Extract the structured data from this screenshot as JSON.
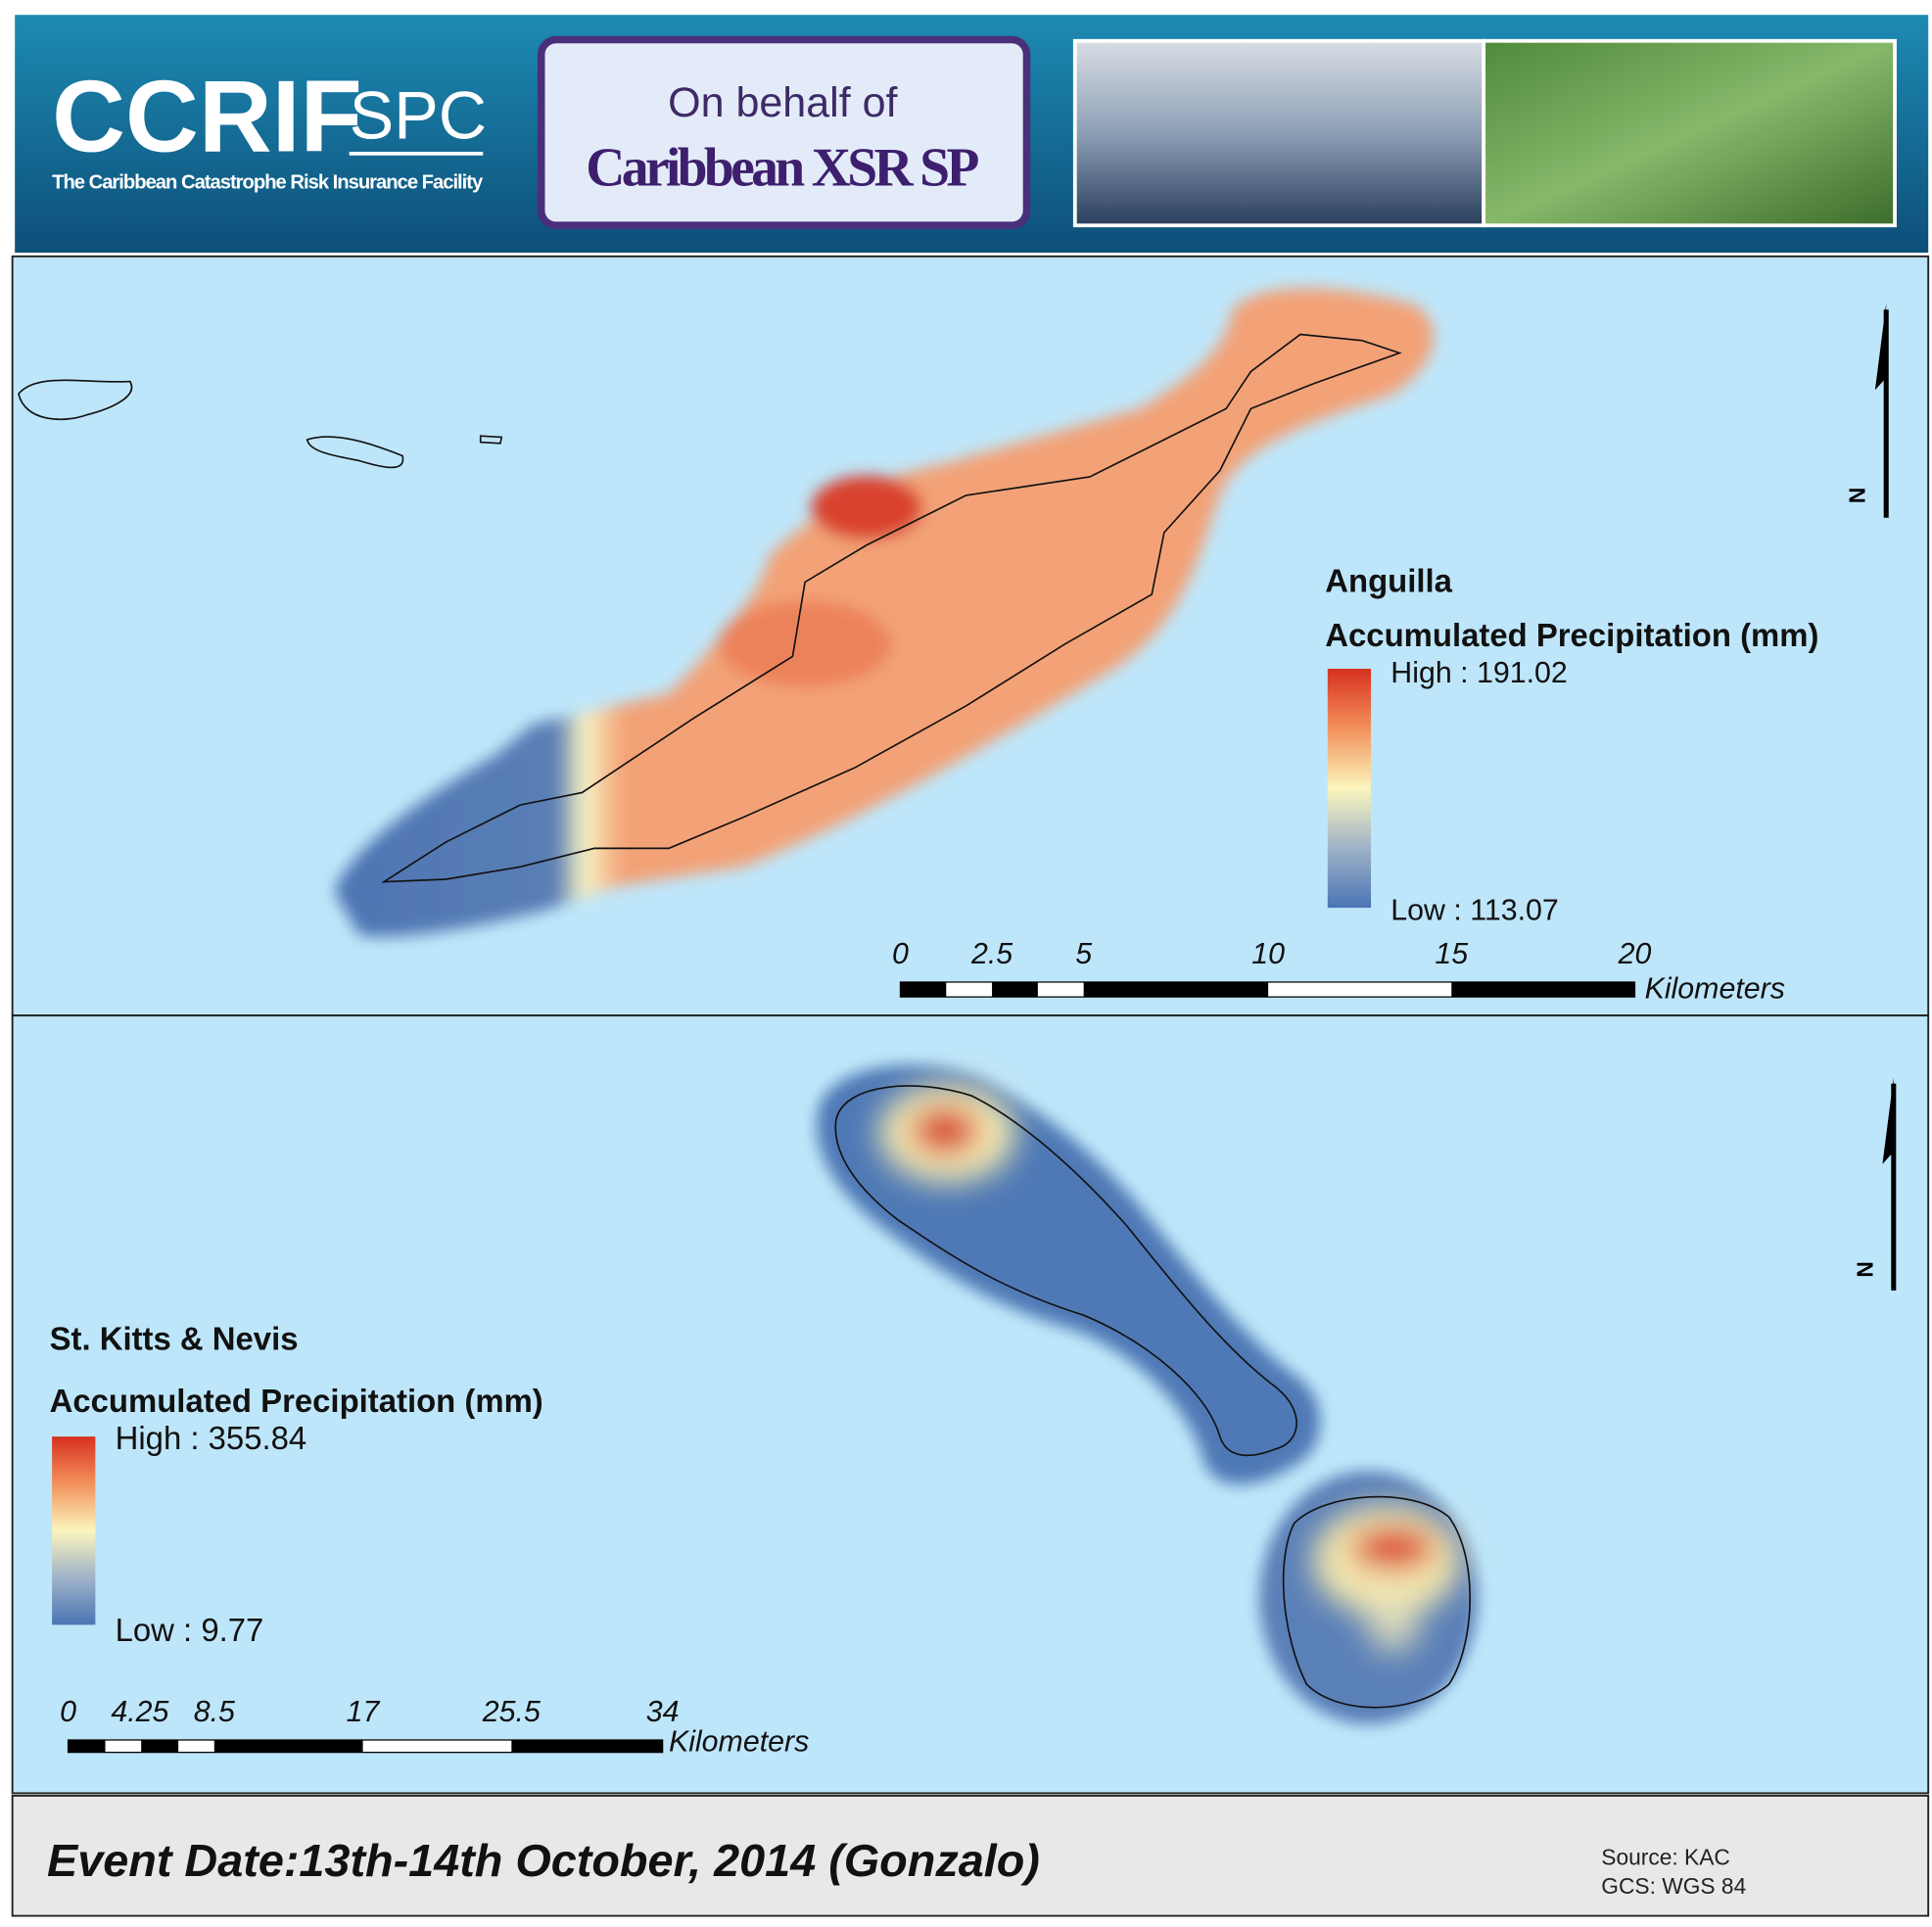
{
  "header": {
    "logo": "CCRIF",
    "logo_suffix": "SPC",
    "tagline": "The Caribbean Catastrophe Risk Insurance Facility",
    "behalf": "On behalf of",
    "client": "Caribbean XSR SP"
  },
  "maps": [
    {
      "country": "Anguilla",
      "legend_title": "Accumulated Precipitation (mm)",
      "high": "High : 191.02",
      "low": "Low : 113.07",
      "scale_labels": [
        "0",
        "2.5",
        "5",
        "10",
        "15",
        "20"
      ],
      "scale_unit": "Kilometers",
      "north": "N"
    },
    {
      "country": "St. Kitts & Nevis",
      "legend_title": "Accumulated Precipitation (mm)",
      "high": "High : 355.84",
      "low": "Low : 9.77",
      "scale_labels": [
        "0",
        "4.25",
        "8.5",
        "17",
        "25.5",
        "34"
      ],
      "scale_unit": "Kilometers",
      "north": "N"
    }
  ],
  "footer": {
    "event": "Event Date:13th-14th October, 2014 (Gonzalo)",
    "source": "Source: KAC",
    "gcs": "GCS: WGS 84"
  }
}
